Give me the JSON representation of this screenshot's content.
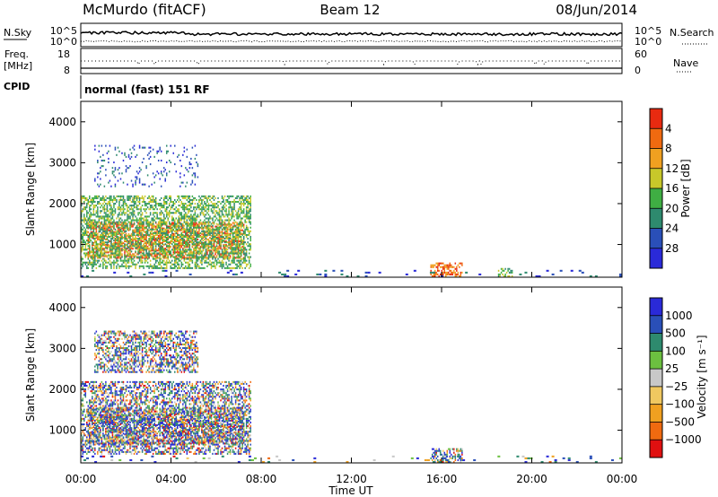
{
  "header": {
    "station": "McMurdo (fitACF)",
    "beam": "Beam 12",
    "date": "08/Jun/2014"
  },
  "noise_panel": {
    "left_label": "N.Sky",
    "right_label": "N.Search",
    "left_ticks": [
      "10^5",
      "10^0"
    ],
    "right_ticks": [
      "10^5",
      "10^0"
    ]
  },
  "freq_panel": {
    "left_label_line1": "Freq.",
    "left_label_line2": "[MHz]",
    "right_label": "Nave",
    "left_ticks": [
      "18",
      "8"
    ],
    "right_ticks": [
      "60",
      "0"
    ]
  },
  "cpid": {
    "label": "CPID",
    "value": "normal (fast) 151 RF"
  },
  "colors": {
    "power": [
      "#2a2ad8",
      "#2a4fb8",
      "#2e8a6e",
      "#3fae43",
      "#c8c82a",
      "#f0a020",
      "#f06a10",
      "#e82a10"
    ],
    "velocity": [
      "#e01010",
      "#f06a10",
      "#f0a020",
      "#f0c860",
      "#c8c8c8",
      "#6cc040",
      "#2e8a6e",
      "#2a4fb8",
      "#2a2ad8"
    ]
  },
  "chart_data": [
    {
      "type": "heatmap",
      "name": "power",
      "ylabel": "Slant Range [km]",
      "xlabel": "",
      "y_ticks": [
        1000,
        2000,
        3000,
        4000
      ],
      "ylim": [
        200,
        4500
      ],
      "x_ticks": [
        "00:00",
        "04:00",
        "08:00",
        "12:00",
        "16:00",
        "20:00",
        "00:00"
      ],
      "xlim_hours": [
        0,
        24
      ],
      "colorbar": {
        "label": "Power [dB]",
        "ticks": [
          "4",
          "8",
          "12",
          "16",
          "20",
          "24",
          "28"
        ],
        "range": [
          0,
          32
        ]
      },
      "regions": [
        {
          "t": [
            0.3,
            7.2
          ],
          "r": [
            650,
            1550
          ],
          "level": "high"
        },
        {
          "t": [
            0.0,
            7.5
          ],
          "r": [
            400,
            2200
          ],
          "level": "mid"
        },
        {
          "t": [
            0.6,
            5.2
          ],
          "r": [
            2400,
            3400
          ],
          "level": "low"
        },
        {
          "t": [
            15.5,
            16.9
          ],
          "r": [
            200,
            550
          ],
          "level": "high"
        },
        {
          "t": [
            18.5,
            19.2
          ],
          "r": [
            200,
            400
          ],
          "level": "mid"
        },
        {
          "t": [
            0,
            24
          ],
          "r": [
            200,
            350
          ],
          "level": "sparse"
        }
      ]
    },
    {
      "type": "heatmap",
      "name": "velocity",
      "ylabel": "Slant Range [km]",
      "xlabel": "Time UT",
      "y_ticks": [
        1000,
        2000,
        3000,
        4000
      ],
      "ylim": [
        200,
        4500
      ],
      "x_ticks": [
        "00:00",
        "04:00",
        "08:00",
        "12:00",
        "16:00",
        "20:00",
        "00:00"
      ],
      "xlim_hours": [
        0,
        24
      ],
      "colorbar": {
        "label": "Velocity [m s^-1]",
        "ticks": [
          "1000",
          "500",
          "100",
          "25",
          "−25",
          "−100",
          "−500",
          "−1000"
        ],
        "range": [
          -1200,
          1200
        ]
      },
      "regions": [
        {
          "t": [
            0.3,
            7.2
          ],
          "r": [
            650,
            1550
          ],
          "level": "mixed"
        },
        {
          "t": [
            0.0,
            7.5
          ],
          "r": [
            400,
            2200
          ],
          "level": "mixed"
        },
        {
          "t": [
            0.6,
            5.2
          ],
          "r": [
            2400,
            3400
          ],
          "level": "mixed"
        },
        {
          "t": [
            15.5,
            16.9
          ],
          "r": [
            200,
            550
          ],
          "level": "mixed"
        },
        {
          "t": [
            0,
            24
          ],
          "r": [
            200,
            350
          ],
          "level": "sparse"
        }
      ]
    }
  ]
}
